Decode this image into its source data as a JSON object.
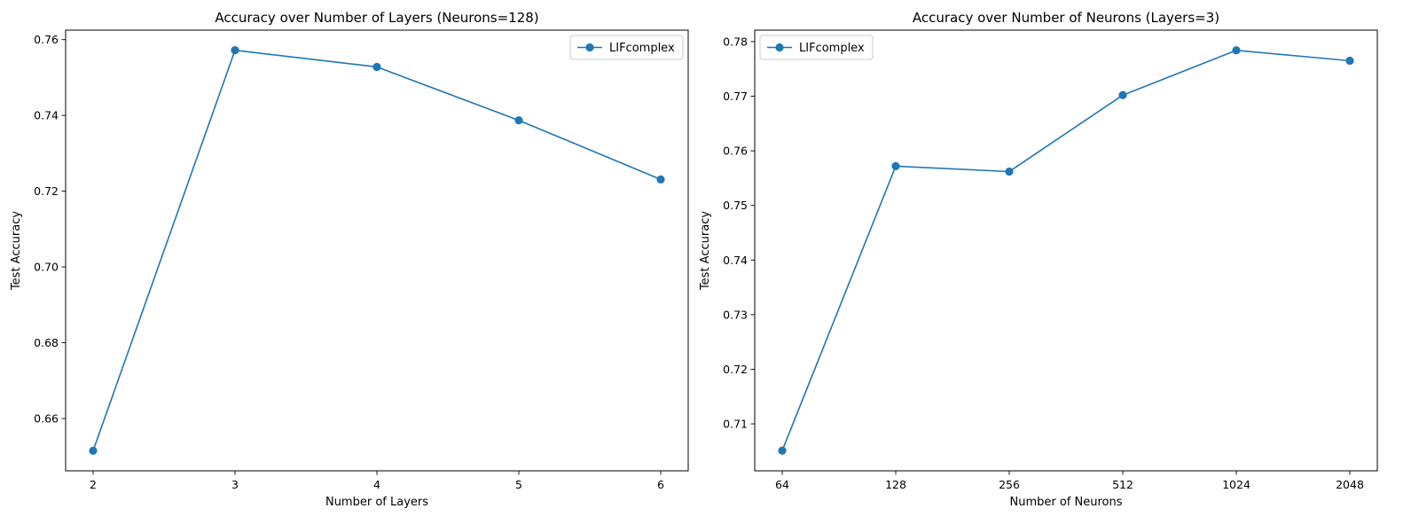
{
  "chart_data": [
    {
      "type": "line",
      "title": "Accuracy over Number of Layers (Neurons=128)",
      "xlabel": "Number of Layers",
      "ylabel": "Test Accuracy",
      "x": [
        2,
        3,
        4,
        5,
        6
      ],
      "xtick_labels": [
        "2",
        "3",
        "4",
        "5",
        "6"
      ],
      "yticks": [
        0.66,
        0.68,
        0.7,
        0.72,
        0.74,
        0.76
      ],
      "ytick_labels": [
        "0.66",
        "0.68",
        "0.70",
        "0.72",
        "0.74",
        "0.76"
      ],
      "ylim": [
        0.6462,
        0.7625
      ],
      "grid": false,
      "legend_position": "top-right",
      "series": [
        {
          "name": "LIFcomplex",
          "color": "#1f77b4",
          "marker": "circle",
          "values": [
            0.6515,
            0.7572,
            0.7528,
            0.7387,
            0.7231
          ]
        }
      ]
    },
    {
      "type": "line",
      "title": "Accuracy over Number of Neurons (Layers=3)",
      "xlabel": "Number of Neurons",
      "ylabel": "Test Accuracy",
      "x": [
        64,
        128,
        256,
        512,
        1024,
        2048
      ],
      "xtick_labels": [
        "64",
        "128",
        "256",
        "512",
        "1024",
        "2048"
      ],
      "x_scale": "categorical",
      "yticks": [
        0.71,
        0.72,
        0.73,
        0.74,
        0.75,
        0.76,
        0.77,
        0.78
      ],
      "ytick_labels": [
        "0.71",
        "0.72",
        "0.73",
        "0.74",
        "0.75",
        "0.76",
        "0.77",
        "0.78"
      ],
      "ylim": [
        0.7014,
        0.7821
      ],
      "grid": false,
      "legend_position": "top-left",
      "series": [
        {
          "name": "LIFcomplex",
          "color": "#1f77b4",
          "marker": "circle",
          "values": [
            0.7051,
            0.7572,
            0.7562,
            0.7702,
            0.7784,
            0.7765
          ]
        }
      ]
    }
  ]
}
